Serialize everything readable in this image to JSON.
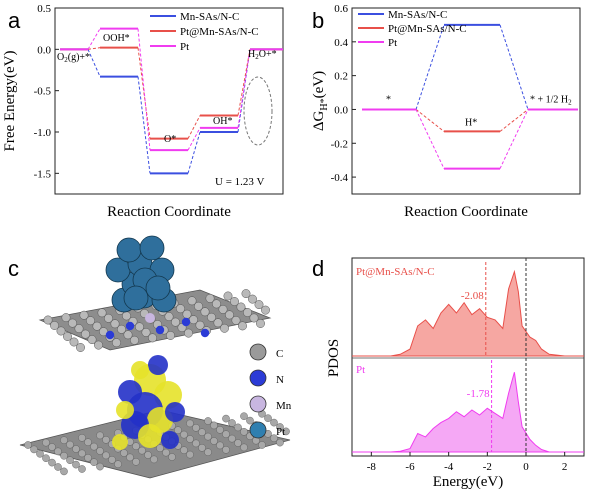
{
  "panels": {
    "a": {
      "letter": "a"
    },
    "b": {
      "letter": "b"
    },
    "c": {
      "letter": "c"
    },
    "d": {
      "letter": "d"
    }
  },
  "colors": {
    "mn": "#3b4fe0",
    "ptmn": "#e8504a",
    "pt": "#f03cf0",
    "pdos_top_fill": "#f6a7a2",
    "pdos_bot_fill": "#f5a8f5"
  },
  "chart_data": [
    {
      "type": "line",
      "panel": "a",
      "title": "",
      "xlabel": "Reaction Coordinate",
      "ylabel": "Free Energy(eV)",
      "ylim": [
        -1.75,
        0.5
      ],
      "yticks": [
        "0.5",
        "0.0",
        "-0.5",
        "-1.0",
        "-1.5"
      ],
      "steps": [
        "O2(g)+*",
        "OOH*",
        "O*",
        "OH*",
        "H2O+*"
      ],
      "step_labels": [
        "O",
        "(g)+*",
        "OOH*",
        "O*",
        "OH*",
        "H",
        "O+*"
      ],
      "series": [
        {
          "name": "Mn-SAs/N-C",
          "values": [
            0.0,
            -0.33,
            -1.5,
            -1.0,
            0.0
          ]
        },
        {
          "name": "Pt@Mn-SAs/N-C",
          "values": [
            0.0,
            0.02,
            -1.08,
            -0.8,
            0.0
          ]
        },
        {
          "name": "Pt",
          "values": [
            0.0,
            0.25,
            -1.22,
            -0.95,
            0.0
          ]
        }
      ],
      "annotation": "U = 1.23 V"
    },
    {
      "type": "line",
      "panel": "b",
      "title": "",
      "xlabel": "Reaction Coordinate",
      "ylabel": "ΔG",
      "ylabel_sub": "H*",
      "ylabel_unit": "(eV)",
      "ylim": [
        -0.5,
        0.6
      ],
      "yticks": [
        "0.6",
        "0.4",
        "0.2",
        "0.0",
        "-0.2",
        "-0.4"
      ],
      "steps": [
        "*",
        "H*",
        "* + 1/2 H2"
      ],
      "step_labels": [
        "*",
        "H*",
        "* + 1/2 H",
        "2"
      ],
      "series": [
        {
          "name": "Mn-SAs/N-C",
          "values": [
            0.0,
            0.5,
            0.0
          ]
        },
        {
          "name": "Pt@Mn-SAs/N-C",
          "values": [
            0.0,
            -0.13,
            0.0
          ]
        },
        {
          "name": "Pt",
          "values": [
            0.0,
            -0.35,
            0.0
          ]
        }
      ]
    },
    {
      "type": "area",
      "panel": "d",
      "title": "",
      "xlabel": "Energy(eV)",
      "ylabel": "PDOS",
      "xlim": [
        -9,
        3
      ],
      "xticks": [
        "-8",
        "-6",
        "-4",
        "-2",
        "0",
        "2"
      ],
      "series": [
        {
          "name": "Pt@Mn-SAs/N-C",
          "d_band_center": -2.08,
          "d_band_label": "-2.08",
          "x": [
            -9,
            -7,
            -6.5,
            -6,
            -5.6,
            -5.2,
            -4.8,
            -4.4,
            -4.0,
            -3.6,
            -3.2,
            -2.8,
            -2.4,
            -2.0,
            -1.6,
            -1.2,
            -0.9,
            -0.6,
            -0.4,
            -0.2,
            0.2,
            0.5,
            0.8,
            1.2,
            2.0,
            3.0
          ],
          "y": [
            0.0,
            0.0,
            0.02,
            0.08,
            0.35,
            0.42,
            0.32,
            0.5,
            0.6,
            0.5,
            0.62,
            0.48,
            0.55,
            0.45,
            0.42,
            0.32,
            0.78,
            0.98,
            0.75,
            0.35,
            0.22,
            0.18,
            0.08,
            0.02,
            0.0,
            0.0
          ]
        },
        {
          "name": "Pt",
          "d_band_center": -1.78,
          "d_band_label": "-1.78",
          "x": [
            -9,
            -7,
            -6.5,
            -6,
            -5.6,
            -5.2,
            -4.8,
            -4.4,
            -4.0,
            -3.6,
            -3.2,
            -2.8,
            -2.4,
            -2.0,
            -1.6,
            -1.2,
            -0.9,
            -0.6,
            -0.4,
            -0.2,
            0.2,
            0.5,
            0.8,
            1.2,
            2.0,
            3.0
          ],
          "y": [
            0.0,
            0.0,
            0.01,
            0.04,
            0.22,
            0.18,
            0.28,
            0.35,
            0.4,
            0.48,
            0.42,
            0.5,
            0.44,
            0.52,
            0.46,
            0.4,
            0.7,
            0.95,
            0.6,
            0.3,
            0.15,
            0.08,
            0.03,
            0.0,
            0.0,
            0.0
          ]
        }
      ]
    }
  ],
  "panel_c": {
    "legend": [
      {
        "label": "C",
        "color": "#9a9a9a"
      },
      {
        "label": "N",
        "color": "#2b3bd6"
      },
      {
        "label": "Mn",
        "color": "#c8b6e0"
      },
      {
        "label": "Pt",
        "color": "#2f7fb0"
      }
    ]
  }
}
